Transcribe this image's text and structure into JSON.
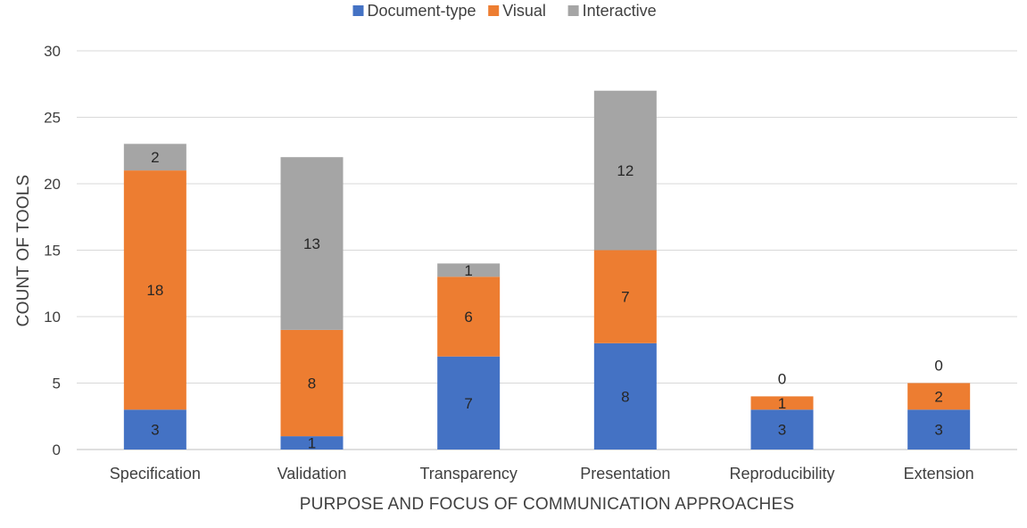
{
  "chart_data": {
    "type": "bar",
    "stacked": true,
    "categories": [
      "Specification",
      "Validation",
      "Transparency",
      "Presentation",
      "Reproducibility",
      "Extension"
    ],
    "series": [
      {
        "name": "Document-type",
        "values": [
          3,
          1,
          7,
          8,
          3,
          3
        ],
        "color": "#4472C4"
      },
      {
        "name": "Visual",
        "values": [
          18,
          8,
          6,
          7,
          1,
          2
        ],
        "color": "#ED7D31"
      },
      {
        "name": "Interactive",
        "values": [
          2,
          13,
          1,
          12,
          0,
          0
        ],
        "color": "#A5A5A5"
      }
    ],
    "xlabel": "PURPOSE AND FOCUS OF COMMUNICATION APPROACHES",
    "ylabel": "COUNT OF TOOLS",
    "ylim": [
      0,
      30
    ],
    "yticks": [
      0,
      5,
      10,
      15,
      20,
      25,
      30
    ],
    "grid": true,
    "legend_position": "top",
    "data_labels": true
  }
}
